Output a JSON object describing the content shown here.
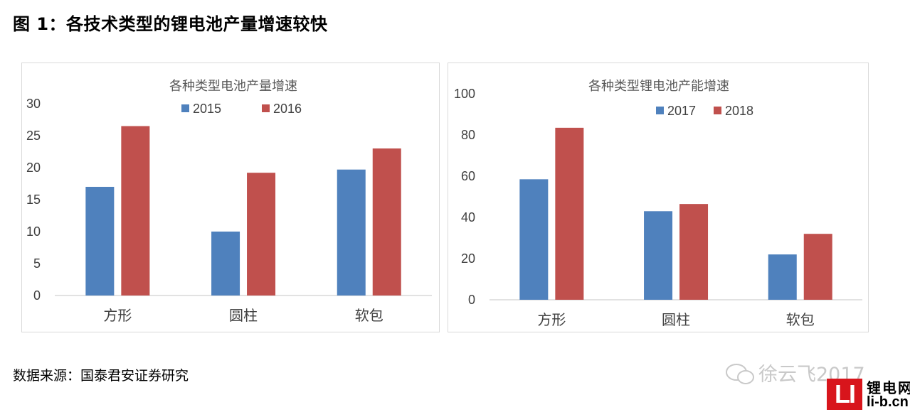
{
  "figure": {
    "title": "图 1：各技术类型的锂电池产量增速较快",
    "source": "数据来源：国泰君安证券研究"
  },
  "watermark": {
    "text": "徐云飞2017",
    "icon": "wechat-bubble-icon"
  },
  "logo": {
    "mark": "LI",
    "line1": "锂电网",
    "line2": "li-b.cn",
    "color": "#d8151c"
  },
  "chart_data": [
    {
      "type": "bar",
      "title": "各种类型电池产量增速",
      "categories": [
        "方形",
        "圆柱",
        "软包"
      ],
      "series": [
        {
          "name": "2015",
          "values": [
            17,
            10,
            19.7
          ],
          "color": "#4f81bd"
        },
        {
          "name": "2016",
          "values": [
            26.5,
            19.2,
            23
          ],
          "color": "#c0504d"
        }
      ],
      "ylim": [
        0,
        30
      ],
      "yticks": [
        0,
        5,
        10,
        15,
        20,
        25,
        30
      ],
      "grid": false,
      "legend": "top"
    },
    {
      "type": "bar",
      "title": "各种类型锂电池产能增速",
      "categories": [
        "方形",
        "圆柱",
        "软包"
      ],
      "series": [
        {
          "name": "2017",
          "values": [
            58.5,
            43,
            22
          ],
          "color": "#4f81bd"
        },
        {
          "name": "2018",
          "values": [
            83.5,
            46.5,
            32
          ],
          "color": "#c0504d"
        }
      ],
      "ylim": [
        0,
        100
      ],
      "yticks": [
        0,
        20,
        40,
        60,
        80,
        100
      ],
      "grid": false,
      "legend": "top"
    }
  ]
}
